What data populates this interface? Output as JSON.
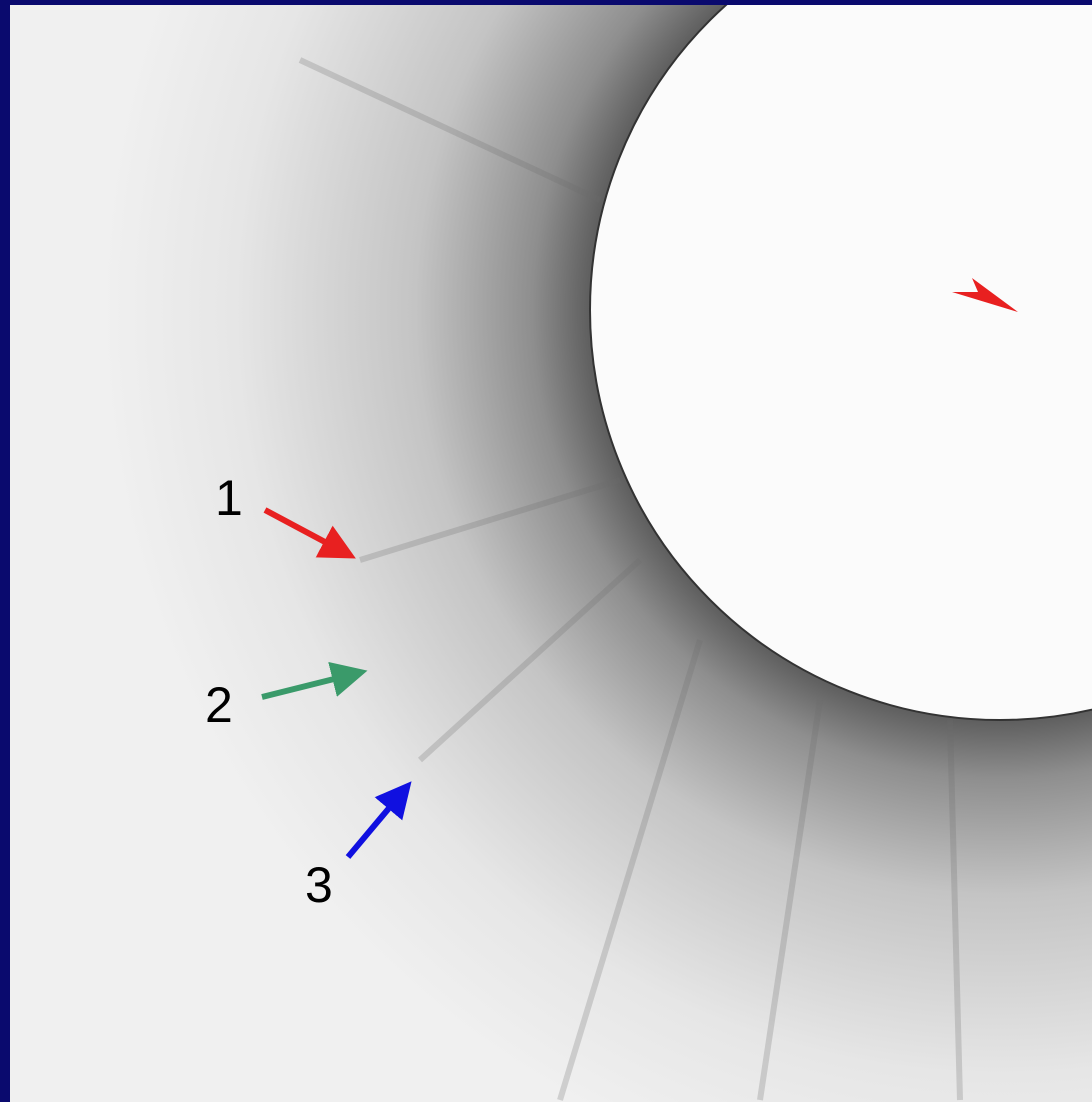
{
  "labels": [
    "1",
    "2",
    "3"
  ]
}
